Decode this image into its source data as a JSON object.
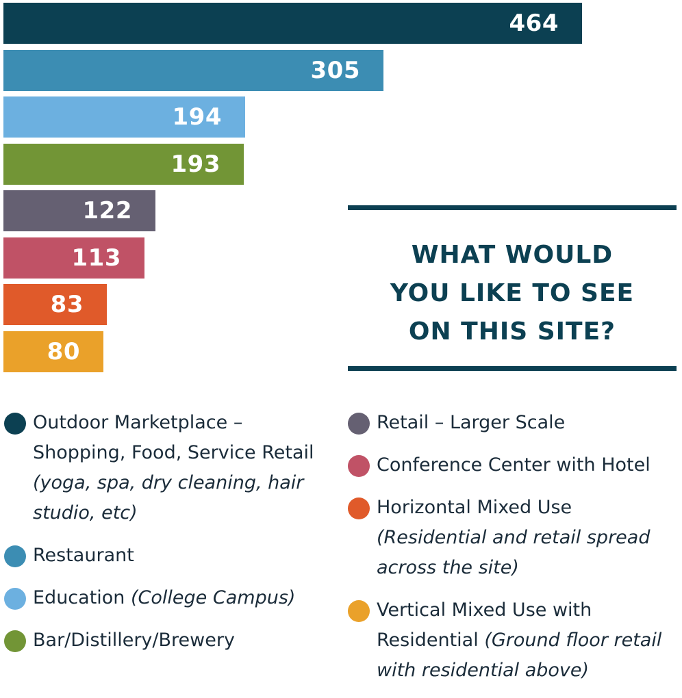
{
  "chart_data": {
    "type": "bar",
    "orientation": "horizontal",
    "title": "WHAT WOULD YOU LIKE TO SEE ON THIS SITE?",
    "title_lines": [
      "WHAT WOULD",
      "YOU LIKE TO SEE",
      "ON THIS SITE?"
    ],
    "categories": [
      "Outdoor Marketplace – Shopping, Food, Service Retail",
      "Restaurant",
      "Education",
      "Bar/Distillery/Brewery",
      "Retail – Larger Scale",
      "Conference Center with Hotel",
      "Horizontal Mixed Use",
      "Vertical Mixed Use with Residential"
    ],
    "values": [
      464,
      305,
      194,
      193,
      122,
      113,
      83,
      80
    ],
    "value_labels": [
      "464",
      "305",
      "194",
      "193",
      "122",
      "113",
      "83",
      "80"
    ],
    "colors": [
      "#0c4052",
      "#3c8db3",
      "#6cb0e0",
      "#729536",
      "#656072",
      "#c05266",
      "#e05a2a",
      "#eaa12a"
    ],
    "xlim": [
      0,
      500
    ],
    "grid": false,
    "legend_placement": "bottom",
    "legend": [
      {
        "label": "Outdoor Marketplace – Shopping, Food, Service Retail",
        "note": "(yoga, spa, dry cleaning, hair studio, etc)",
        "color": "#0c4052"
      },
      {
        "label": "Restaurant",
        "note": "",
        "color": "#3c8db3"
      },
      {
        "label": "Education",
        "note": "(College Campus)",
        "color": "#6cb0e0"
      },
      {
        "label": "Bar/Distillery/Brewery",
        "note": "",
        "color": "#729536"
      },
      {
        "label": "Retail – Larger Scale",
        "note": "",
        "color": "#656072"
      },
      {
        "label": "Conference Center with Hotel",
        "note": "",
        "color": "#c05266"
      },
      {
        "label": "Horizontal Mixed Use",
        "note": "(Residential and retail spread across the site)",
        "color": "#e05a2a"
      },
      {
        "label": "Vertical Mixed Use with Residential",
        "note": "(Ground floor retail with residential above)",
        "color": "#eaa12a"
      }
    ]
  }
}
